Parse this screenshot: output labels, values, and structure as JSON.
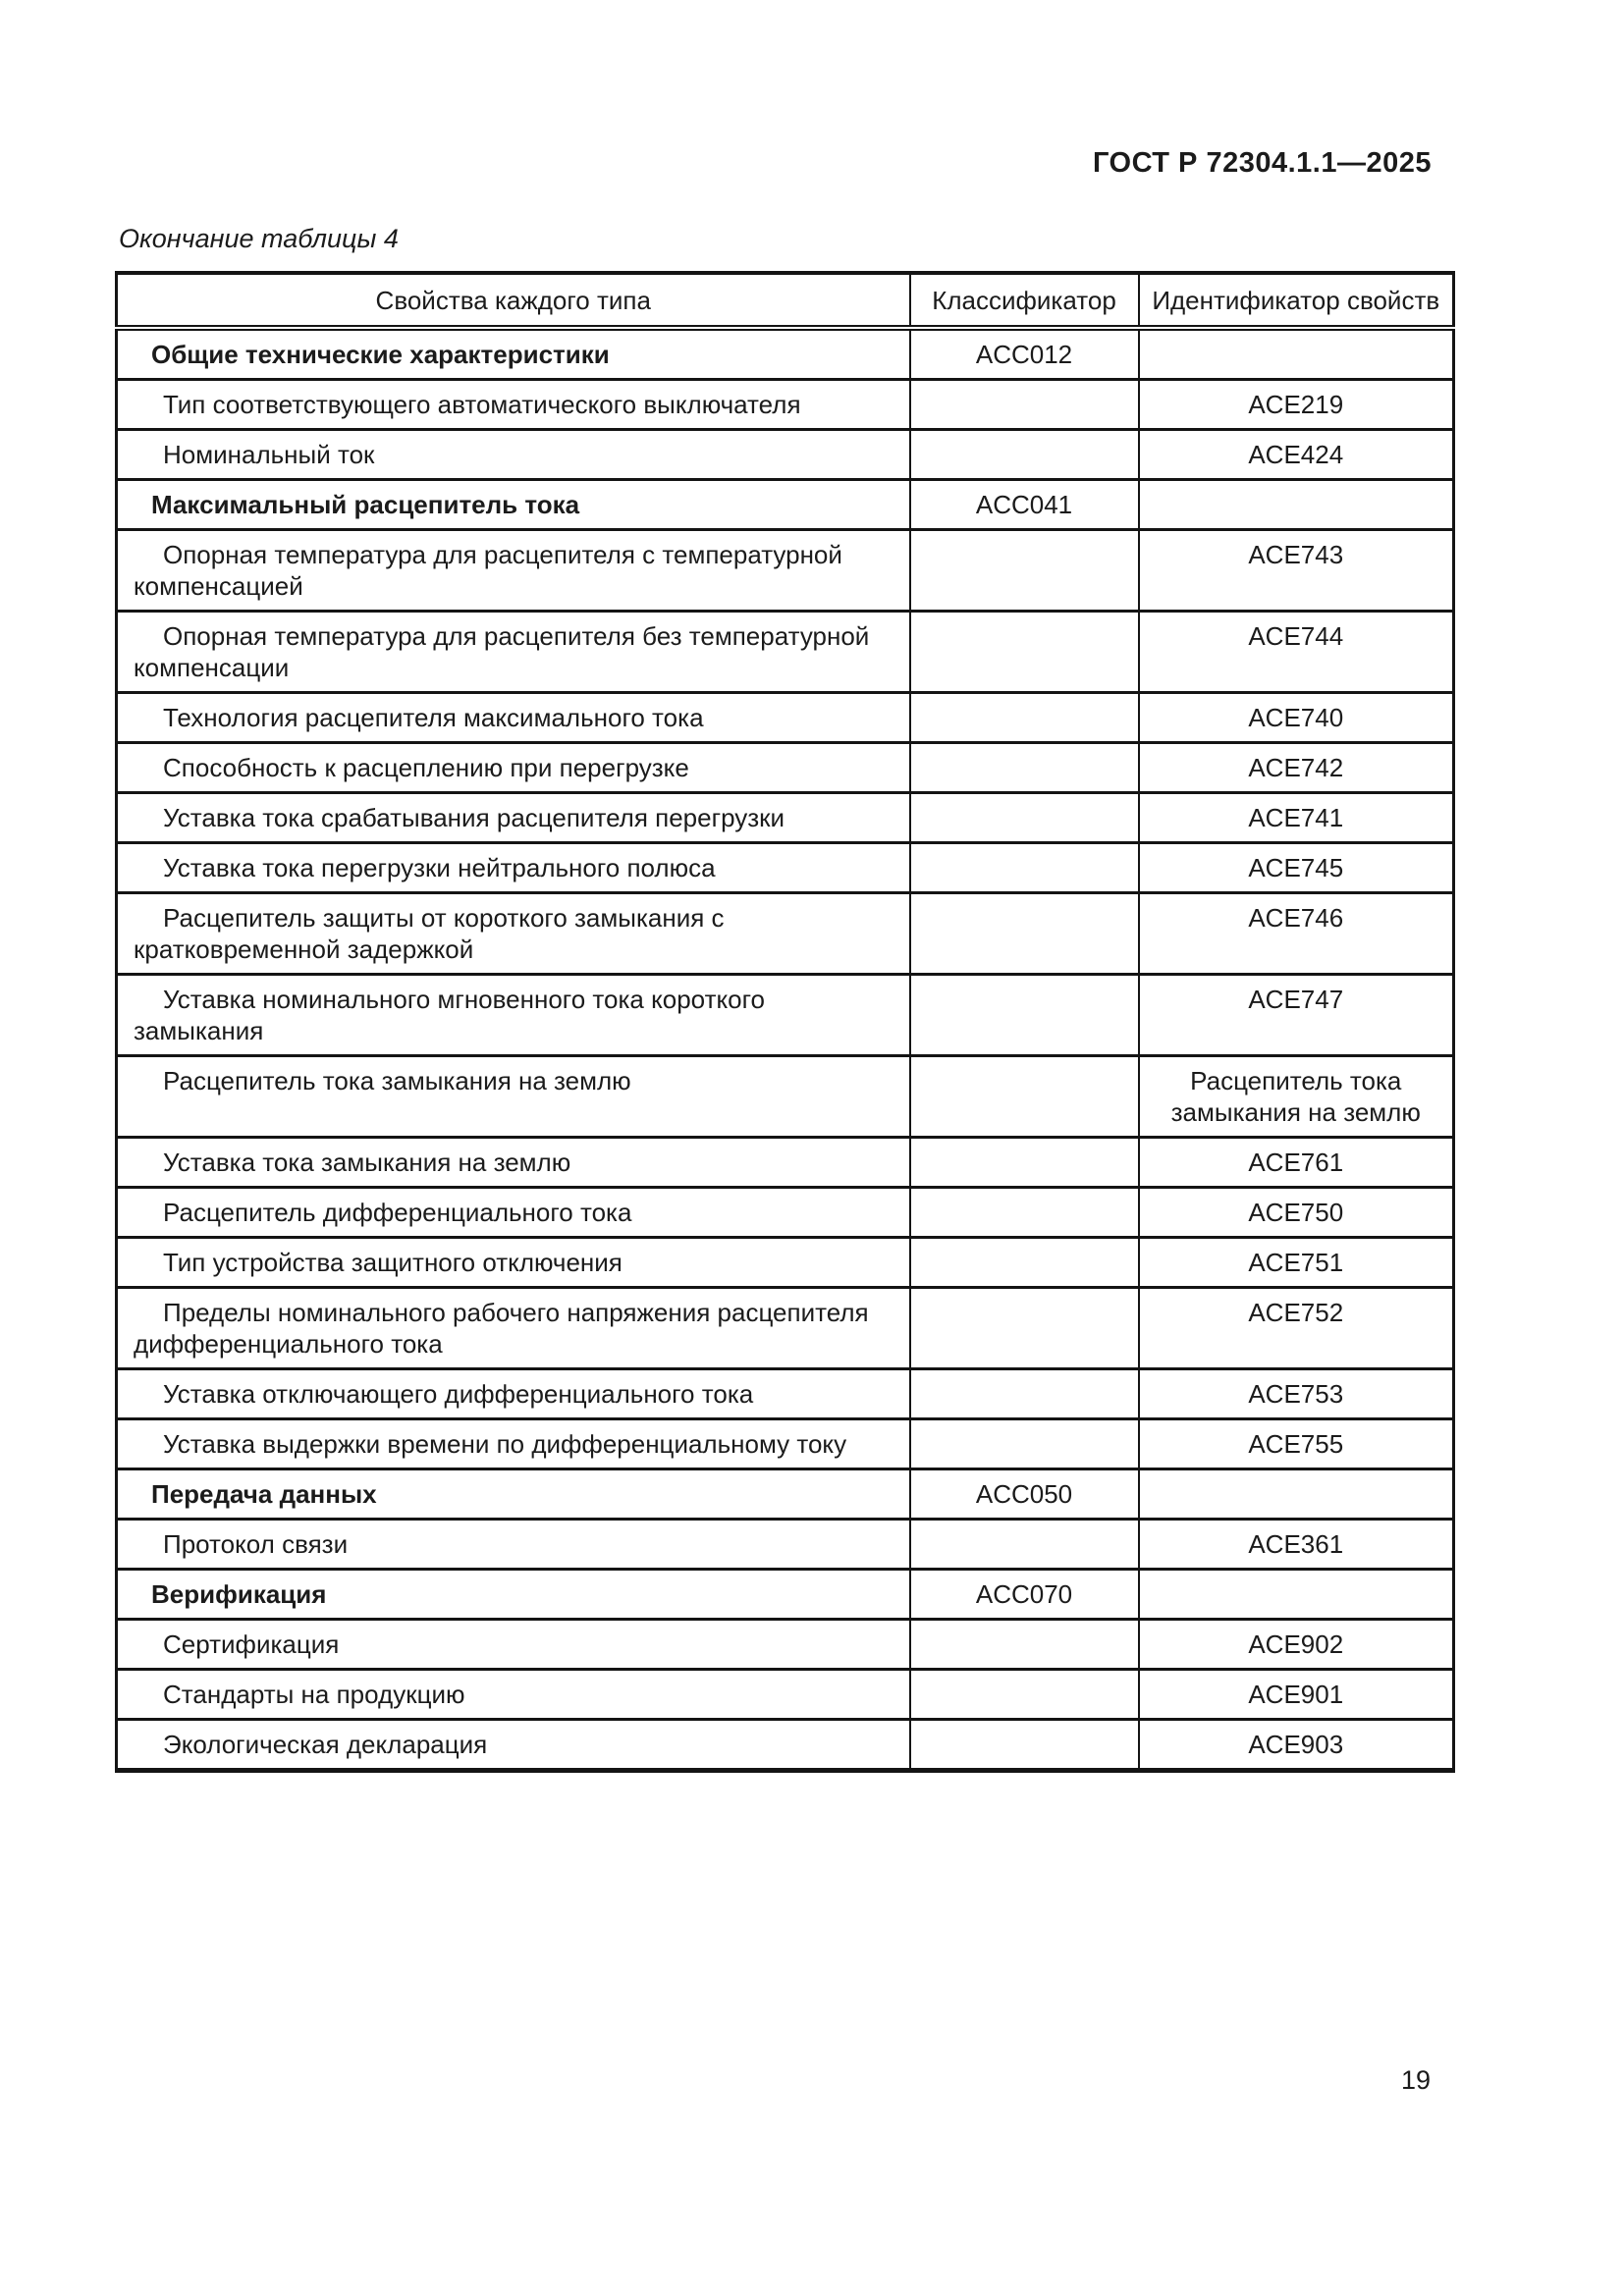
{
  "page": {
    "doc_code": "ГОСТ Р 72304.1.1—2025",
    "table_caption": "Окончание таблицы 4",
    "page_number": "19"
  },
  "table": {
    "columns": [
      "Свойства каждого типа",
      "Классификатор",
      "Идентификатор свойств"
    ],
    "rows": [
      {
        "property": "Общие технические характеристики",
        "bold": true,
        "classifier": "ACC012",
        "identifier": ""
      },
      {
        "property": "Тип соответствующего автоматического выключателя",
        "bold": false,
        "classifier": "",
        "identifier": "ACE219"
      },
      {
        "property": "Номинальный ток",
        "bold": false,
        "classifier": "",
        "identifier": "ACE424"
      },
      {
        "property": "Максимальный расцепитель тока",
        "bold": true,
        "classifier": "ACC041",
        "identifier": ""
      },
      {
        "property": "Опорная температура для расцепителя с температурной компенсацией",
        "bold": false,
        "classifier": "",
        "identifier": "ACE743"
      },
      {
        "property": "Опорная температура для расцепителя без температурной компенсации",
        "bold": false,
        "classifier": "",
        "identifier": "ACE744"
      },
      {
        "property": "Технология расцепителя максимального тока",
        "bold": false,
        "classifier": "",
        "identifier": "ACE740"
      },
      {
        "property": "Способность к расцеплению при перегрузке",
        "bold": false,
        "classifier": "",
        "identifier": "ACE742"
      },
      {
        "property": "Уставка тока срабатывания расцепителя перегрузки",
        "bold": false,
        "classifier": "",
        "identifier": "ACE741"
      },
      {
        "property": "Уставка тока перегрузки нейтрального полюса",
        "bold": false,
        "classifier": "",
        "identifier": "ACE745"
      },
      {
        "property": "Расцепитель защиты от короткого замыкания с кратковремен­ной задержкой",
        "bold": false,
        "classifier": "",
        "identifier": "ACE746"
      },
      {
        "property": "Уставка номинального мгновенного тока короткого замыкания",
        "bold": false,
        "classifier": "",
        "identifier": "ACE747"
      },
      {
        "property": "Расцепитель тока замыкания на землю",
        "bold": false,
        "classifier": "",
        "identifier": "Расцепитель тока замыкания на землю"
      },
      {
        "property": "Уставка тока замыкания на землю",
        "bold": false,
        "classifier": "",
        "identifier": "ACE761"
      },
      {
        "property": "Расцепитель дифференциального тока",
        "bold": false,
        "classifier": "",
        "identifier": "ACE750"
      },
      {
        "property": "Тип устройства защитного отключения",
        "bold": false,
        "classifier": "",
        "identifier": "ACE751"
      },
      {
        "property": "Пределы номинального рабочего напряжения расцепителя дифференциального тока",
        "bold": false,
        "classifier": "",
        "identifier": "ACE752"
      },
      {
        "property": "Уставка отключающего дифференциального тока",
        "bold": false,
        "classifier": "",
        "identifier": "ACE753"
      },
      {
        "property": "Уставка выдержки времени по дифференциальному току",
        "bold": false,
        "classifier": "",
        "identifier": "ACE755"
      },
      {
        "property": "Передача данных",
        "bold": true,
        "classifier": "ACC050",
        "identifier": ""
      },
      {
        "property": "Протокол связи",
        "bold": false,
        "classifier": "",
        "identifier": "ACE361"
      },
      {
        "property": "Верификация",
        "bold": true,
        "classifier": "ACC070",
        "identifier": ""
      },
      {
        "property": "Сертификация",
        "bold": false,
        "classifier": "",
        "identifier": "ACE902"
      },
      {
        "property": "Стандарты на продукцию",
        "bold": false,
        "classifier": "",
        "identifier": "ACE901"
      },
      {
        "property": "Экологическая декларация",
        "bold": false,
        "classifier": "",
        "identifier": "ACE903"
      }
    ]
  }
}
